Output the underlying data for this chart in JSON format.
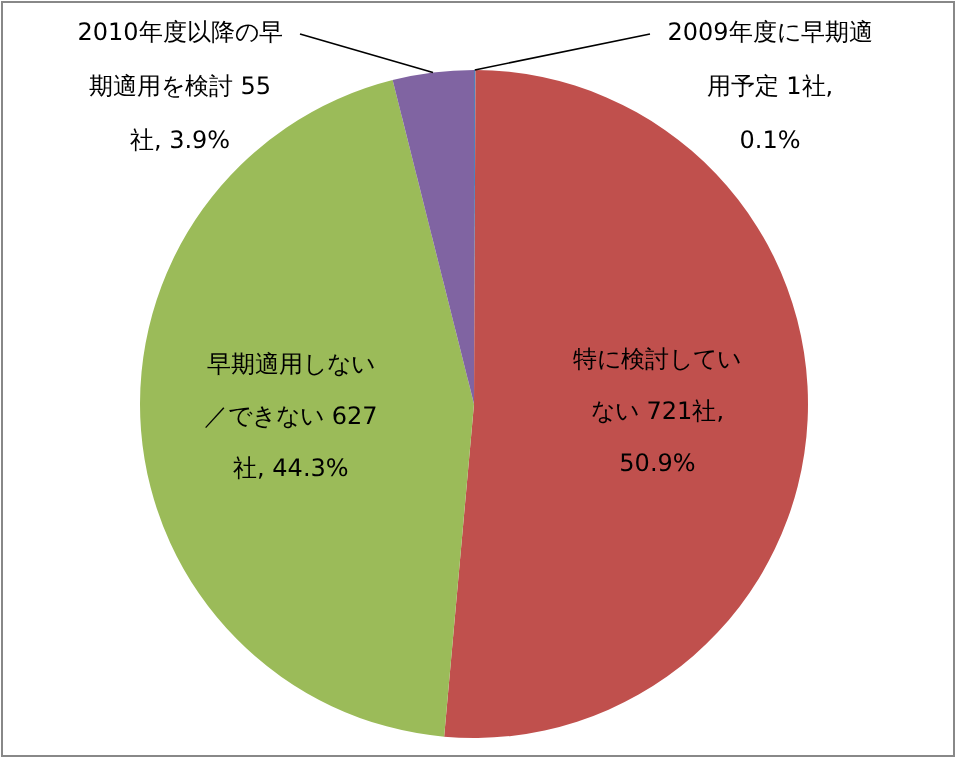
{
  "chart_data": {
    "type": "pie",
    "categories": [
      "2009年度に早期適用予定",
      "特に検討していない",
      "早期適用しない／できない",
      "2010年度以降の早期適用を検討"
    ],
    "values": [
      1,
      721,
      627,
      55
    ],
    "value_labels": [
      "1社, 0.1%",
      "721社, 50.9%",
      "627社, 44.3%",
      "55社, 3.9%"
    ],
    "colors": [
      "#4f81bd",
      "#c0504d",
      "#9bbb59",
      "#8064a2"
    ],
    "legend": false
  }
}
